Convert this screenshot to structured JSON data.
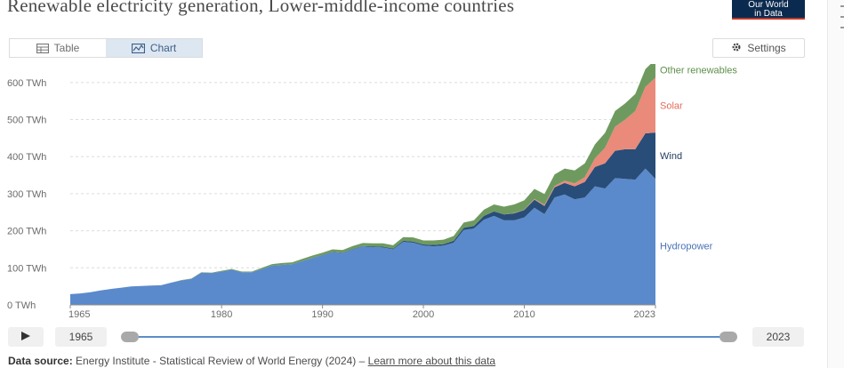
{
  "title": "Renewable electricity generation, Lower-middle-income countries",
  "logo": {
    "line1": "Our World",
    "line2": "in Data"
  },
  "tabs": [
    {
      "label": "Table",
      "icon": "table-icon",
      "active": false
    },
    {
      "label": "Chart",
      "icon": "chart-icon",
      "active": true
    }
  ],
  "settings_label": "Settings",
  "timeline": {
    "start": "1965",
    "end": "2023"
  },
  "source": {
    "prefix": "Data source:",
    "text": "Energy Institute - Statistical Review of World Energy (2024) –",
    "link": "Learn more about this data"
  },
  "colors": {
    "Hydropower": "#5a8acb",
    "Wind": "#284d78",
    "Solar": "#e98a7a",
    "Other renewables": "#6f9a5f"
  },
  "label_colors": {
    "Hydropower": "#4a73b6",
    "Wind": "#243e63",
    "Solar": "#e26b5a",
    "Other renewables": "#5d8e4a"
  },
  "chart_data": {
    "type": "area",
    "stacked": true,
    "title": "Renewable electricity generation, Lower-middle-income countries",
    "ylabel": "",
    "xlabel": "",
    "y_unit": "TWh",
    "ylim": [
      0,
      650
    ],
    "yticks": [
      0,
      100,
      200,
      300,
      400,
      500,
      600
    ],
    "ytick_labels": [
      "0 TWh",
      "100 TWh",
      "200 TWh",
      "300 TWh",
      "400 TWh",
      "500 TWh",
      "600 TWh"
    ],
    "xlim": [
      1965,
      2023
    ],
    "xticks": [
      1965,
      1980,
      1990,
      2000,
      2010,
      2023
    ],
    "grid": "horizontal dotted",
    "legend": "inline labels at right end",
    "x": [
      1965,
      1966,
      1967,
      1968,
      1969,
      1970,
      1971,
      1972,
      1973,
      1974,
      1975,
      1976,
      1977,
      1978,
      1979,
      1980,
      1981,
      1982,
      1983,
      1984,
      1985,
      1986,
      1987,
      1988,
      1989,
      1990,
      1991,
      1992,
      1993,
      1994,
      1995,
      1996,
      1997,
      1998,
      1999,
      2000,
      2001,
      2002,
      2003,
      2004,
      2005,
      2006,
      2007,
      2008,
      2009,
      2010,
      2011,
      2012,
      2013,
      2014,
      2015,
      2016,
      2017,
      2018,
      2019,
      2020,
      2021,
      2022,
      2023
    ],
    "series": [
      {
        "name": "Hydropower",
        "values": [
          29,
          31,
          34,
          39,
          43,
          46,
          50,
          51,
          52,
          53,
          60,
          66,
          70,
          87,
          86,
          90,
          95,
          88,
          88,
          97,
          106,
          108,
          110,
          118,
          127,
          134,
          142,
          140,
          150,
          158,
          156,
          155,
          150,
          170,
          168,
          160,
          158,
          160,
          168,
          202,
          206,
          230,
          240,
          228,
          228,
          236,
          262,
          245,
          290,
          298,
          285,
          290,
          320,
          314,
          342,
          340,
          338,
          368,
          340
        ]
      },
      {
        "name": "Wind",
        "values": [
          0,
          0,
          0,
          0,
          0,
          0,
          0,
          0,
          0,
          0,
          0,
          0,
          0,
          0,
          0,
          0,
          0,
          0,
          0,
          0,
          0,
          0,
          0,
          0,
          0,
          1,
          1,
          1,
          1,
          1,
          2,
          2,
          2,
          3,
          3,
          3,
          4,
          4,
          5,
          6,
          7,
          10,
          12,
          16,
          19,
          20,
          22,
          22,
          27,
          31,
          35,
          42,
          52,
          68,
          74,
          80,
          82,
          95,
          125
        ]
      },
      {
        "name": "Solar",
        "values": [
          0,
          0,
          0,
          0,
          0,
          0,
          0,
          0,
          0,
          0,
          0,
          0,
          0,
          0,
          0,
          0,
          0,
          0,
          0,
          0,
          0,
          0,
          0,
          0,
          0,
          0,
          0,
          0,
          0,
          0,
          0,
          0,
          0,
          0,
          0,
          0,
          0,
          0,
          0,
          0,
          0,
          0,
          0,
          0,
          1,
          1,
          2,
          3,
          4,
          6,
          8,
          13,
          23,
          42,
          65,
          80,
          103,
          125,
          148
        ]
      },
      {
        "name": "Other renewables",
        "values": [
          0,
          0,
          0,
          0,
          0,
          0,
          0,
          0,
          0,
          0,
          0,
          1,
          1,
          1,
          1,
          2,
          2,
          2,
          2,
          3,
          4,
          5,
          5,
          6,
          6,
          6,
          7,
          7,
          8,
          8,
          8,
          9,
          9,
          10,
          11,
          11,
          12,
          12,
          13,
          14,
          15,
          17,
          19,
          21,
          23,
          25,
          27,
          29,
          31,
          33,
          35,
          37,
          38,
          40,
          42,
          44,
          46,
          48,
          50
        ]
      }
    ]
  }
}
